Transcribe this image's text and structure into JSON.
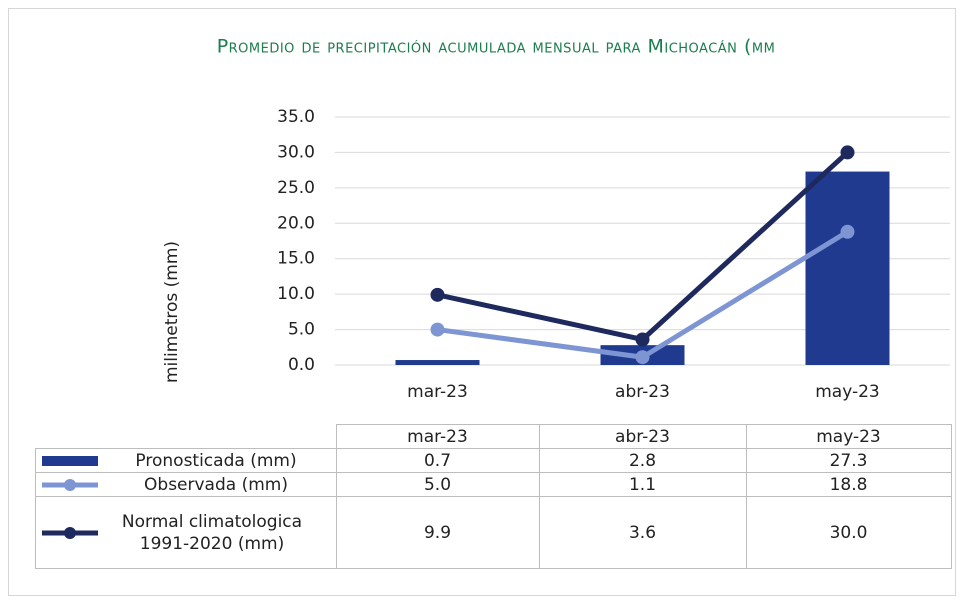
{
  "chart_data": {
    "type": "bar",
    "title": "Promedio de precipitación acumulada mensual para Michoacán (mm",
    "y_label": "milimetros (mm)",
    "categories": [
      "mar-23",
      "abr-23",
      "may-23"
    ],
    "series": [
      {
        "name": "Pronosticada (mm)",
        "type": "bar",
        "color": "#1f3a8f",
        "values": [
          0.7,
          2.8,
          27.3
        ],
        "value_labels": [
          "0.7",
          "2.8",
          "27.3"
        ]
      },
      {
        "name": "Observada (mm)",
        "type": "line",
        "color": "#7e95d3",
        "values": [
          5.0,
          1.1,
          18.8
        ],
        "value_labels": [
          "5.0",
          "1.1",
          "18.8"
        ]
      },
      {
        "name": "Normal climatologica 1991-2020 (mm)",
        "type": "line",
        "color": "#1e2a5e",
        "values": [
          9.9,
          3.6,
          30.0
        ],
        "value_labels": [
          "9.9",
          "3.6",
          "30.0"
        ]
      }
    ],
    "ylim": [
      0,
      35
    ],
    "yticks": [
      {
        "value": 0,
        "label": "0.0"
      },
      {
        "value": 5,
        "label": "5.0"
      },
      {
        "value": 10,
        "label": "10.0"
      },
      {
        "value": 15,
        "label": "15.0"
      },
      {
        "value": 20,
        "label": "20.0"
      },
      {
        "value": 25,
        "label": "25.0"
      },
      {
        "value": 30,
        "label": "30.0"
      },
      {
        "value": 35,
        "label": "35.0"
      }
    ],
    "grid": true
  }
}
